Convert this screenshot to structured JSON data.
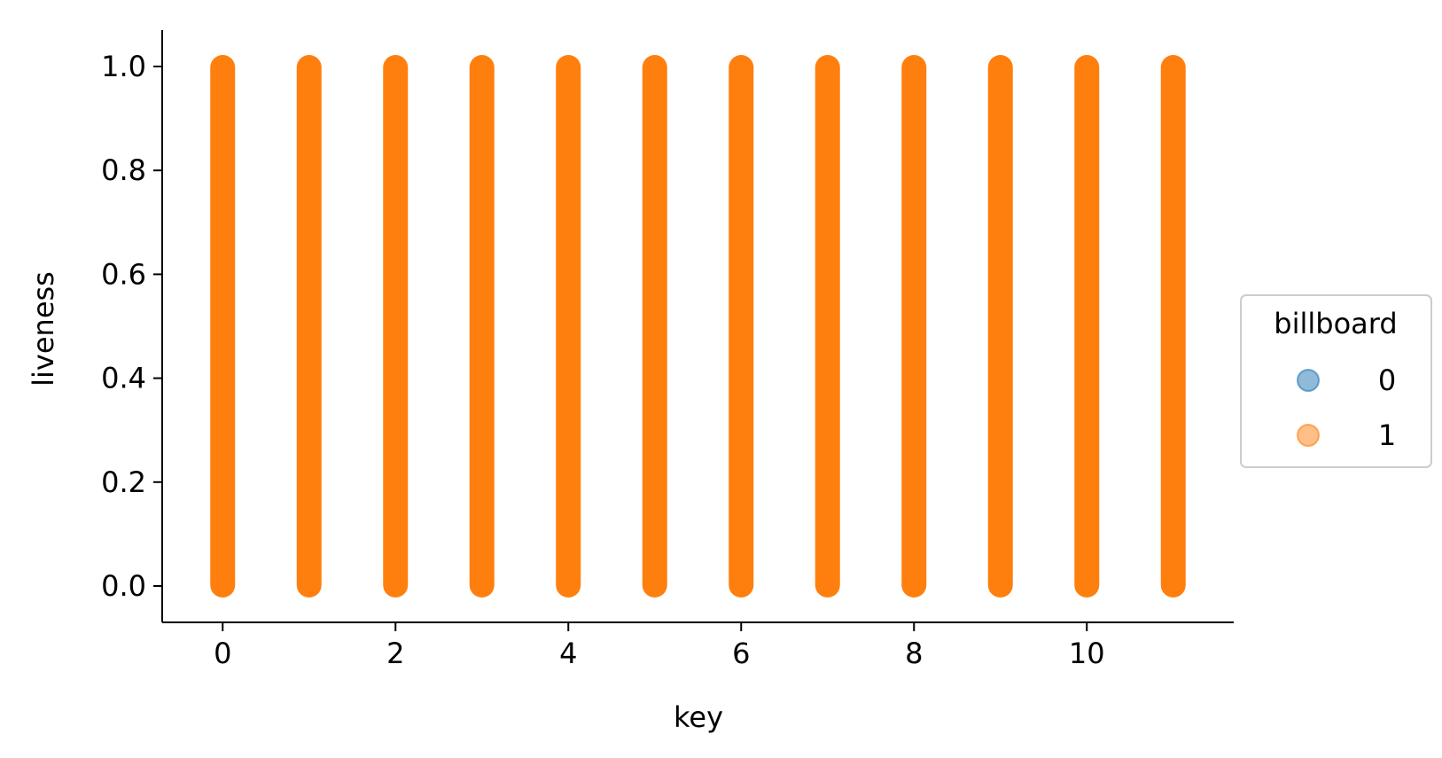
{
  "chart_data": {
    "type": "scatter",
    "title": "",
    "xlabel": "key",
    "ylabel": "liveness",
    "x_values": [
      0,
      1,
      2,
      3,
      4,
      5,
      6,
      7,
      8,
      9,
      10,
      11
    ],
    "y_range_per_key": [
      0.0,
      1.0
    ],
    "xlim": [
      -0.7,
      11.7
    ],
    "ylim": [
      -0.07,
      1.07
    ],
    "x_ticks": [
      0,
      2,
      4,
      6,
      8,
      10
    ],
    "x_tick_labels": [
      "0",
      "2",
      "4",
      "6",
      "8",
      "10"
    ],
    "y_ticks": [
      0.0,
      0.2,
      0.4,
      0.6,
      0.8,
      1.0
    ],
    "y_tick_labels": [
      "0.0",
      "0.2",
      "0.4",
      "0.6",
      "0.8",
      "1.0"
    ],
    "grid": false,
    "legend": {
      "title": "billboard",
      "placement": "right",
      "entries": [
        {
          "label": "0",
          "color": "#1f77b4"
        },
        {
          "label": "1",
          "color": "#ff7f0e"
        }
      ]
    },
    "series": [
      {
        "name": "0",
        "color": "#1f77b4"
      },
      {
        "name": "1",
        "color": "#ff7f0e"
      }
    ]
  }
}
